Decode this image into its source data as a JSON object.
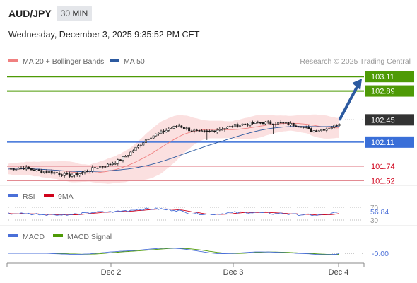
{
  "header": {
    "symbol": "AUD/JPY",
    "timeframe": "30 MIN",
    "datetime": "Wednesday, December 3, 2025 9:35:52 PM CET"
  },
  "main_panel": {
    "legend": [
      {
        "label": "MA 20 + Bollinger Bands",
        "color": "#f08080"
      },
      {
        "label": "MA 50",
        "color": "#2c5aa0"
      }
    ],
    "credit": "Research © 2025 Trading Central",
    "levels": [
      {
        "value": 103.11,
        "label": "103.11",
        "role": "target",
        "color": "#4e9a06"
      },
      {
        "value": 102.89,
        "label": "102.89",
        "role": "target",
        "color": "#4e9a06"
      },
      {
        "value": 102.45,
        "label": "102.45",
        "role": "last-price",
        "color": "#333333"
      },
      {
        "value": 102.11,
        "label": "102.11",
        "role": "pivot",
        "color": "#3a6fd8"
      },
      {
        "value": 101.74,
        "label": "101.74",
        "role": "support",
        "color": "#d0021b"
      },
      {
        "value": 101.52,
        "label": "101.52",
        "role": "support",
        "color": "#d0021b"
      }
    ]
  },
  "rsi_panel": {
    "legend": [
      {
        "label": "RSI",
        "color": "#4a6fd8"
      },
      {
        "label": "9MA",
        "color": "#d0021b"
      }
    ],
    "level_labels": [
      "70",
      "30"
    ],
    "current_label": "56.84"
  },
  "macd_panel": {
    "legend": [
      {
        "label": "MACD",
        "color": "#4a6fd8"
      },
      {
        "label": "MACD Signal",
        "color": "#4e9a06"
      }
    ],
    "current_label": "-0.00"
  },
  "x_axis": {
    "ticks": [
      "Dec 2",
      "Dec 3",
      "Dec 4"
    ]
  },
  "chart_data": {
    "type": "candlestick",
    "symbol": "AUD/JPY",
    "interval": "30 MIN",
    "ylim": [
      101.45,
      103.22
    ],
    "x_ticks": [
      "Dec 2",
      "Dec 3",
      "Dec 4"
    ],
    "close_path": [
      [
        0,
        101.7
      ],
      [
        6,
        101.72
      ],
      [
        10,
        101.68
      ],
      [
        15,
        101.66
      ],
      [
        19,
        101.64
      ],
      [
        23,
        101.6
      ],
      [
        27,
        101.62
      ],
      [
        31,
        101.67
      ],
      [
        35,
        101.73
      ],
      [
        39,
        101.76
      ],
      [
        43,
        101.82
      ],
      [
        47,
        101.92
      ],
      [
        51,
        102.05
      ],
      [
        55,
        102.18
      ],
      [
        59,
        102.24
      ],
      [
        63,
        102.31
      ],
      [
        67,
        102.36
      ],
      [
        71,
        102.3
      ],
      [
        75,
        102.26
      ],
      [
        79,
        102.27
      ],
      [
        83,
        102.31
      ],
      [
        87,
        102.34
      ],
      [
        91,
        102.38
      ],
      [
        95,
        102.39
      ],
      [
        99,
        102.41
      ],
      [
        103,
        102.4
      ],
      [
        107,
        102.4
      ],
      [
        111,
        102.38
      ],
      [
        115,
        102.36
      ],
      [
        119,
        102.28
      ],
      [
        123,
        102.3
      ],
      [
        127,
        102.34
      ],
      [
        130,
        102.4
      ]
    ],
    "macd_zero_value": -0.0,
    "rsi_value": 56.84
  }
}
